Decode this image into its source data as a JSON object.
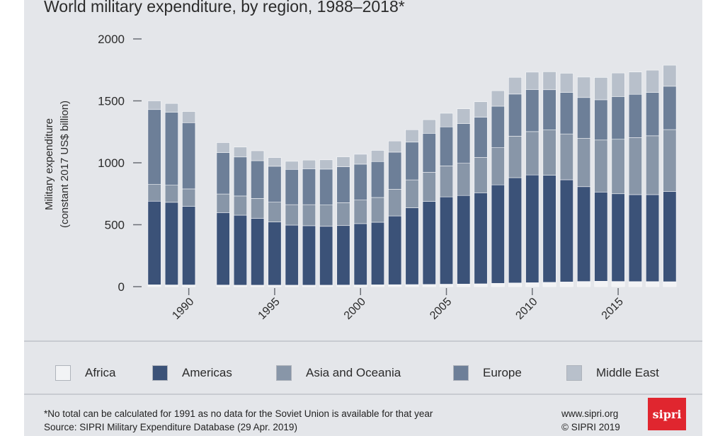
{
  "header": {
    "title": "World military expenditure, by region, 1988–2018*"
  },
  "chart_data": {
    "type": "bar",
    "stacked": true,
    "title": "World military expenditure, by region, 1988–2018*",
    "ylabel_line1": "Military expenditure",
    "ylabel_line2": "(constant 2017 US$ billion)",
    "xlabel": "",
    "ylim": [
      0,
      2000
    ],
    "yticks": [
      "0",
      "500",
      "1000",
      "1500",
      "2000"
    ],
    "xticks": [
      "1990",
      "1995",
      "2000",
      "2005",
      "2010",
      "2015"
    ],
    "grid": false,
    "legend_position": "bottom",
    "x": [
      1988,
      1989,
      1990,
      1991,
      1992,
      1993,
      1994,
      1995,
      1996,
      1997,
      1998,
      1999,
      2000,
      2001,
      2002,
      2003,
      2004,
      2005,
      2006,
      2007,
      2008,
      2009,
      2010,
      2011,
      2012,
      2013,
      2014,
      2015,
      2016,
      2017,
      2018
    ],
    "series": [
      {
        "name": "Africa",
        "color": "#f2f3f5",
        "values": [
          15,
          14,
          14,
          null,
          13,
          12,
          12,
          12,
          12,
          12,
          12,
          13,
          14,
          15,
          16,
          17,
          18,
          20,
          21,
          23,
          27,
          30,
          32,
          35,
          38,
          42,
          44,
          42,
          41,
          41,
          40
        ]
      },
      {
        "name": "Americas",
        "color": "#3b5278",
        "values": [
          675,
          667,
          635,
          null,
          585,
          565,
          540,
          510,
          485,
          480,
          475,
          480,
          495,
          505,
          555,
          620,
          670,
          705,
          715,
          735,
          795,
          850,
          870,
          865,
          825,
          765,
          720,
          708,
          702,
          702,
          728
        ]
      },
      {
        "name": "Asia and Oceania",
        "color": "#8896a8",
        "values": [
          135,
          138,
          140,
          null,
          150,
          155,
          160,
          160,
          165,
          170,
          172,
          185,
          190,
          200,
          215,
          225,
          235,
          250,
          260,
          285,
          300,
          335,
          350,
          365,
          370,
          390,
          420,
          440,
          460,
          475,
          500
        ]
      },
      {
        "name": "Europe",
        "color": "#6d7f98",
        "values": [
          605,
          590,
          535,
          null,
          335,
          315,
          305,
          290,
          285,
          290,
          290,
          290,
          290,
          290,
          300,
          305,
          315,
          315,
          320,
          325,
          335,
          340,
          340,
          325,
          335,
          330,
          325,
          345,
          350,
          350,
          350
        ]
      },
      {
        "name": "Middle East",
        "color": "#b8c0cb",
        "values": [
          70,
          70,
          90,
          null,
          80,
          80,
          80,
          70,
          65,
          70,
          75,
          80,
          80,
          90,
          90,
          100,
          110,
          110,
          120,
          125,
          125,
          135,
          140,
          145,
          155,
          165,
          180,
          190,
          180,
          180,
          170
        ]
      }
    ],
    "totals": [
      1500,
      1479,
      1414,
      null,
      1163,
      1127,
      1097,
      1042,
      1012,
      1022,
      1024,
      1048,
      1069,
      1100,
      1176,
      1267,
      1348,
      1400,
      1436,
      1493,
      1582,
      1690,
      1732,
      1735,
      1723,
      1692,
      1689,
      1725,
      1733,
      1748,
      1788
    ]
  },
  "legend": {
    "items": [
      {
        "label": "Africa",
        "color": "#f2f3f5"
      },
      {
        "label": "Americas",
        "color": "#3b5278"
      },
      {
        "label": "Asia and Oceania",
        "color": "#8896a8"
      },
      {
        "label": "Europe",
        "color": "#6d7f98"
      },
      {
        "label": "Middle East",
        "color": "#b8c0cb"
      }
    ]
  },
  "footer": {
    "note": "*No total can be calculated for 1991 as no data for the Soviet Union is available for that year",
    "source": "Source: SIPRI Military Expenditure Database (29 Apr. 2019)",
    "website": "www.sipri.org",
    "copyright": "© SIPRI 2019",
    "logo_text": "sipri"
  }
}
